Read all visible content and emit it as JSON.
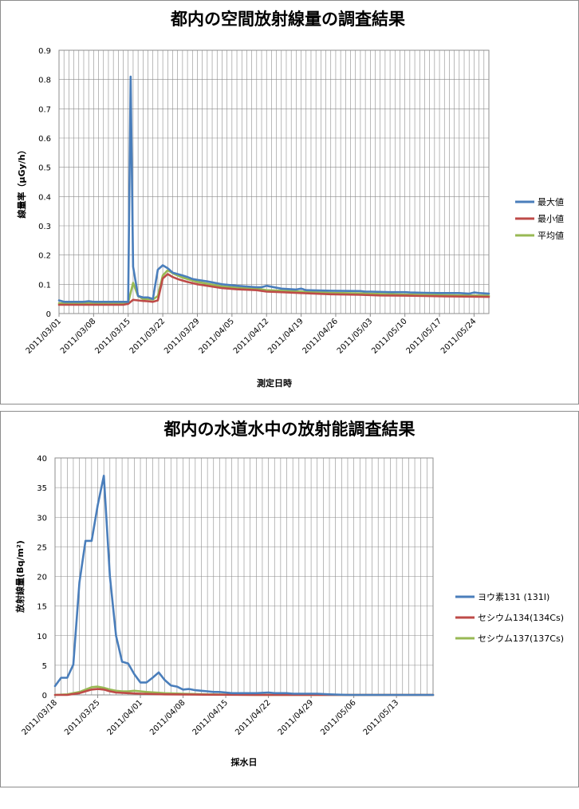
{
  "chart_data": [
    {
      "type": "line",
      "title": "都内の空間放射線量の調査結果",
      "xlabel": "測定日時",
      "ylabel": "線量率（μGy/h）",
      "ylim": [
        0,
        0.9
      ],
      "yticks": [
        "0",
        "0.1",
        "0.2",
        "0.3",
        "0.4",
        "0.5",
        "0.6",
        "0.7",
        "0.8",
        "0.9"
      ],
      "xlim": [
        "2011-03-01",
        "2011-05-27"
      ],
      "xticks": [
        "2011/03/01",
        "2011/03/08",
        "2011/03/15",
        "2011/03/22",
        "2011/03/29",
        "2011/04/05",
        "2011/04/12",
        "2011/04/19",
        "2011/04/26",
        "2011/05/03",
        "2011/05/10",
        "2011/05/17",
        "2011/05/24"
      ],
      "grid": "vertical daily, horizontal every 0.1",
      "legend": "right",
      "series": [
        {
          "name": "最大値",
          "color": "#4a7ebb",
          "x": [
            "2011-03-01",
            "2011-03-02",
            "2011-03-03",
            "2011-03-04",
            "2011-03-05",
            "2011-03-06",
            "2011-03-07",
            "2011-03-08",
            "2011-03-09",
            "2011-03-10",
            "2011-03-11",
            "2011-03-12",
            "2011-03-13",
            "2011-03-14",
            "2011-03-15",
            "2011-03-15 12:00",
            "2011-03-16",
            "2011-03-17",
            "2011-03-18",
            "2011-03-19",
            "2011-03-20",
            "2011-03-21",
            "2011-03-22",
            "2011-03-23",
            "2011-03-24",
            "2011-03-25",
            "2011-03-26",
            "2011-03-27",
            "2011-03-28",
            "2011-03-29",
            "2011-03-31",
            "2011-04-03",
            "2011-04-06",
            "2011-04-10",
            "2011-04-11",
            "2011-04-12",
            "2011-04-15",
            "2011-04-18",
            "2011-04-19",
            "2011-04-20",
            "2011-04-25",
            "2011-05-01",
            "2011-05-02",
            "2011-05-03",
            "2011-05-07",
            "2011-05-10",
            "2011-05-11",
            "2011-05-14",
            "2011-05-17",
            "2011-05-18",
            "2011-05-21",
            "2011-05-23",
            "2011-05-24",
            "2011-05-25",
            "2011-05-27"
          ],
          "values": [
            0.045,
            0.04,
            0.04,
            0.04,
            0.04,
            0.04,
            0.042,
            0.04,
            0.04,
            0.04,
            0.04,
            0.04,
            0.04,
            0.04,
            0.04,
            0.81,
            0.16,
            0.06,
            0.055,
            0.055,
            0.05,
            0.15,
            0.165,
            0.155,
            0.14,
            0.135,
            0.13,
            0.125,
            0.118,
            0.115,
            0.11,
            0.1,
            0.095,
            0.09,
            0.09,
            0.095,
            0.085,
            0.082,
            0.085,
            0.08,
            0.078,
            0.077,
            0.075,
            0.075,
            0.073,
            0.073,
            0.072,
            0.071,
            0.07,
            0.07,
            0.07,
            0.068,
            0.072,
            0.07,
            0.068
          ]
        },
        {
          "name": "最小値",
          "color": "#be4b48",
          "x": [
            "2011-03-01",
            "2011-03-05",
            "2011-03-10",
            "2011-03-14",
            "2011-03-15",
            "2011-03-16",
            "2011-03-17",
            "2011-03-18",
            "2011-03-19",
            "2011-03-20",
            "2011-03-21",
            "2011-03-22",
            "2011-03-23",
            "2011-03-24",
            "2011-03-25",
            "2011-03-26",
            "2011-03-27",
            "2011-03-29",
            "2011-03-31",
            "2011-04-03",
            "2011-04-06",
            "2011-04-10",
            "2011-04-12",
            "2011-04-15",
            "2011-04-19",
            "2011-04-25",
            "2011-05-01",
            "2011-05-05",
            "2011-05-10",
            "2011-05-14",
            "2011-05-18",
            "2011-05-22",
            "2011-05-27"
          ],
          "values": [
            0.03,
            0.03,
            0.03,
            0.03,
            0.033,
            0.047,
            0.045,
            0.043,
            0.042,
            0.04,
            0.045,
            0.12,
            0.135,
            0.125,
            0.118,
            0.113,
            0.108,
            0.1,
            0.095,
            0.087,
            0.083,
            0.08,
            0.075,
            0.073,
            0.07,
            0.066,
            0.064,
            0.062,
            0.061,
            0.06,
            0.059,
            0.058,
            0.057
          ]
        },
        {
          "name": "平均値",
          "color": "#98b954",
          "x": [
            "2011-03-01",
            "2011-03-05",
            "2011-03-10",
            "2011-03-14",
            "2011-03-15",
            "2011-03-16",
            "2011-03-17",
            "2011-03-18",
            "2011-03-19",
            "2011-03-20",
            "2011-03-21",
            "2011-03-22",
            "2011-03-23",
            "2011-03-24",
            "2011-03-25",
            "2011-03-26",
            "2011-03-27",
            "2011-03-29",
            "2011-03-31",
            "2011-04-03",
            "2011-04-06",
            "2011-04-10",
            "2011-04-12",
            "2011-04-15",
            "2011-04-19",
            "2011-04-25",
            "2011-05-01",
            "2011-05-05",
            "2011-05-10",
            "2011-05-14",
            "2011-05-18",
            "2011-05-22",
            "2011-05-27"
          ],
          "values": [
            0.035,
            0.035,
            0.035,
            0.035,
            0.037,
            0.105,
            0.06,
            0.05,
            0.05,
            0.048,
            0.06,
            0.13,
            0.148,
            0.138,
            0.13,
            0.123,
            0.118,
            0.108,
            0.102,
            0.093,
            0.088,
            0.085,
            0.08,
            0.078,
            0.075,
            0.071,
            0.069,
            0.067,
            0.065,
            0.064,
            0.063,
            0.062,
            0.061
          ]
        }
      ]
    },
    {
      "type": "line",
      "title": "都内の水道水中の放射能調査結果",
      "xlabel": "採水日",
      "ylabel": "放射線量(Bq/m²)",
      "ylim": [
        0,
        40
      ],
      "yticks": [
        "0",
        "5",
        "10",
        "15",
        "20",
        "25",
        "30",
        "35",
        "40"
      ],
      "xlim": [
        "2011-03-18",
        "2011-05-19"
      ],
      "xticks": [
        "2011/03/18",
        "2011/03/25",
        "2011/04/01",
        "2011/04/08",
        "2011/04/15",
        "2011/04/22",
        "2011/04/29",
        "2011/05/06",
        "2011/05/13"
      ],
      "grid": "vertical daily, horizontal every 5",
      "legend": "right",
      "series": [
        {
          "name": "ヨウ素131 (131I)",
          "color": "#4a7ebb",
          "x": [
            "2011-03-18",
            "2011-03-19",
            "2011-03-20",
            "2011-03-21",
            "2011-03-22",
            "2011-03-23",
            "2011-03-24",
            "2011-03-25",
            "2011-03-26",
            "2011-03-27",
            "2011-03-28",
            "2011-03-29",
            "2011-03-30",
            "2011-03-31",
            "2011-04-01",
            "2011-04-02",
            "2011-04-03",
            "2011-04-04",
            "2011-04-05",
            "2011-04-06",
            "2011-04-07",
            "2011-04-08",
            "2011-04-09",
            "2011-04-10",
            "2011-04-11",
            "2011-04-12",
            "2011-04-13",
            "2011-04-14",
            "2011-04-15",
            "2011-04-16",
            "2011-04-18",
            "2011-04-20",
            "2011-04-22",
            "2011-04-23",
            "2011-04-25",
            "2011-04-26",
            "2011-04-28",
            "2011-04-30",
            "2011-05-02",
            "2011-05-05",
            "2011-05-10",
            "2011-05-19"
          ],
          "values": [
            1.5,
            2.9,
            2.9,
            5.1,
            19,
            26,
            26,
            32,
            37,
            20,
            10,
            5.6,
            5.3,
            3.5,
            2.1,
            2.1,
            2.9,
            3.8,
            2.5,
            1.6,
            1.4,
            0.9,
            1.0,
            0.8,
            0.7,
            0.6,
            0.5,
            0.5,
            0.4,
            0.3,
            0.3,
            0.3,
            0.4,
            0.3,
            0.3,
            0.2,
            0.2,
            0.2,
            0.1,
            0,
            0,
            0
          ]
        },
        {
          "name": "セシウム134(134Cs)",
          "color": "#be4b48",
          "x": [
            "2011-03-18",
            "2011-03-20",
            "2011-03-22",
            "2011-03-23",
            "2011-03-24",
            "2011-03-25",
            "2011-03-26",
            "2011-03-27",
            "2011-03-28",
            "2011-03-30",
            "2011-04-01",
            "2011-04-05",
            "2011-04-10",
            "2011-04-20",
            "2011-05-19"
          ],
          "values": [
            0,
            0,
            0.3,
            0.6,
            0.9,
            1.0,
            0.9,
            0.6,
            0.4,
            0.3,
            0.2,
            0.1,
            0.05,
            0,
            0
          ]
        },
        {
          "name": "セシウム137(137Cs)",
          "color": "#98b954",
          "x": [
            "2011-03-18",
            "2011-03-20",
            "2011-03-22",
            "2011-03-23",
            "2011-03-24",
            "2011-03-25",
            "2011-03-26",
            "2011-03-27",
            "2011-03-28",
            "2011-03-29",
            "2011-03-30",
            "2011-03-31",
            "2011-04-01",
            "2011-04-02",
            "2011-04-05",
            "2011-04-08",
            "2011-04-12",
            "2011-04-20",
            "2011-05-19"
          ],
          "values": [
            0,
            0.1,
            0.5,
            0.9,
            1.3,
            1.4,
            1.2,
            0.9,
            0.7,
            0.6,
            0.6,
            0.7,
            0.6,
            0.5,
            0.3,
            0.2,
            0.1,
            0,
            0
          ]
        }
      ]
    }
  ]
}
